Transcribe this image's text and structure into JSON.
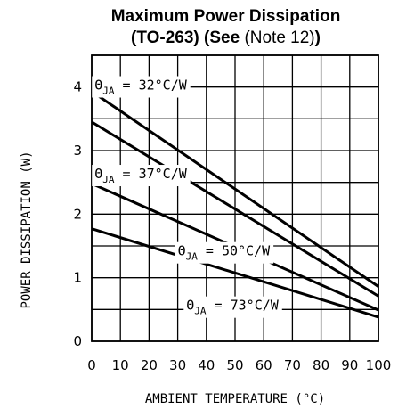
{
  "title_line1": "Maximum Power Dissipation",
  "title_line2_a": "(TO-263) (See",
  "title_line2_note": "(Note 12)",
  "title_line2_b": ")",
  "chart_data": {
    "type": "line",
    "title": "Maximum Power Dissipation (TO-263) (See (Note 12))",
    "xlabel": "AMBIENT TEMPERATURE (°C)",
    "ylabel": "POWER DISSIPATION (W)",
    "xlim": [
      0,
      100
    ],
    "ylim": [
      0,
      4.5
    ],
    "x_ticks": [
      0,
      10,
      20,
      30,
      40,
      50,
      60,
      70,
      80,
      90,
      100
    ],
    "y_ticks": [
      0,
      1,
      2,
      3,
      4
    ],
    "grid": true,
    "series": [
      {
        "name": "ΘJA = 32°C/W",
        "theta": "32",
        "x": [
          0,
          100
        ],
        "y": [
          3.93,
          0.86
        ]
      },
      {
        "name": "ΘJA = 37°C/W",
        "theta": "37",
        "x": [
          0,
          100
        ],
        "y": [
          3.45,
          0.71
        ]
      },
      {
        "name": "ΘJA = 50°C/W",
        "theta": "50",
        "x": [
          0,
          100
        ],
        "y": [
          2.48,
          0.49
        ]
      },
      {
        "name": "ΘJA = 73°C/W",
        "theta": "73",
        "x": [
          0,
          100
        ],
        "y": [
          1.77,
          0.38
        ]
      }
    ],
    "label_theta_symbol": "Θ",
    "label_sub": "JA",
    "label_unit": "°C/W"
  }
}
